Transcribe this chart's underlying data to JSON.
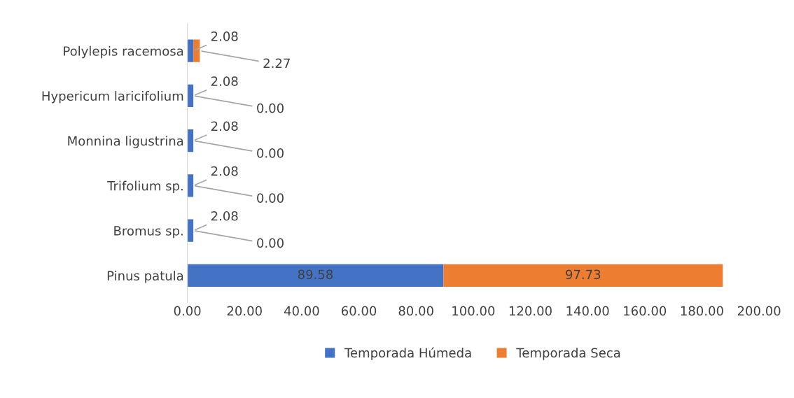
{
  "chart_data": {
    "type": "bar",
    "orientation": "horizontal",
    "stacked": true,
    "categories": [
      "Polylepis racemosa",
      "Hypericum laricifolium",
      "Monnina ligustrina",
      "Trifolium sp.",
      "Bromus sp.",
      "Pinus patula"
    ],
    "series": [
      {
        "name": "Temporada Húmeda",
        "color": "#4472c4",
        "values": [
          2.08,
          2.08,
          2.08,
          2.08,
          2.08,
          89.58
        ],
        "value_labels": [
          "2.08",
          "2.08",
          "2.08",
          "2.08",
          "2.08",
          "89.58"
        ]
      },
      {
        "name": "Temporada Seca",
        "color": "#ed7d31",
        "values": [
          2.27,
          0,
          0,
          0,
          0,
          97.73
        ],
        "value_labels": [
          "2.27",
          "0.00",
          "0.00",
          "0.00",
          "0.00",
          "97.73"
        ]
      }
    ],
    "xlim": [
      0,
      200
    ],
    "xticks": [
      {
        "value": 0,
        "label": "0.00"
      },
      {
        "value": 20,
        "label": "20.00"
      },
      {
        "value": 40,
        "label": "40.00"
      },
      {
        "value": 60,
        "label": "60.00"
      },
      {
        "value": 80,
        "label": "80.00"
      },
      {
        "value": 100,
        "label": "100.00"
      },
      {
        "value": 120,
        "label": "120.00"
      },
      {
        "value": 140,
        "label": "140.00"
      },
      {
        "value": 160,
        "label": "160.00"
      },
      {
        "value": 180,
        "label": "180.00"
      },
      {
        "value": 200,
        "label": "200.00"
      }
    ],
    "grid": false,
    "legend": "bottom"
  }
}
